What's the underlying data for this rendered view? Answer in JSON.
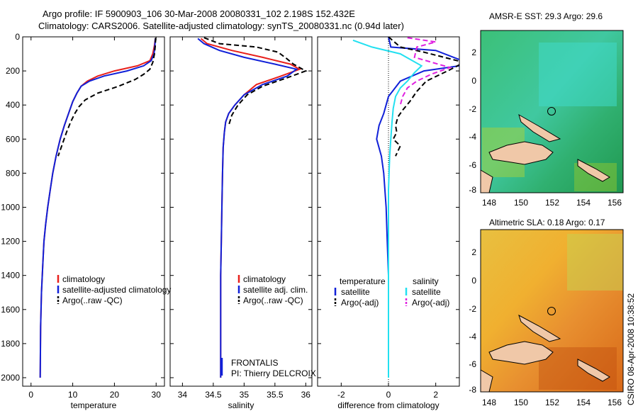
{
  "title_line1": "Argo profile: IF 5900903_106 30-Mar-2008 20080331_102 2.198S 152.432E",
  "title_line2": "Climatology: CARS2006. Satellite-adjusted climatology: synTS_20080331.nc (0.94d later)",
  "side_label": "CSIRO 08-Apr-2008 10:38:52",
  "colors": {
    "climatology": "#e8201c",
    "satellite": "#1020d8",
    "argo": "#000000",
    "cyan": "#22e0f0",
    "magenta": "#e020e0"
  },
  "chart_data": [
    {
      "type": "line",
      "id": "temperature",
      "xlabel": "temperature",
      "ylabel": "",
      "xlim": [
        -2,
        32
      ],
      "ylim": [
        2050,
        0
      ],
      "y_inverted": true,
      "xticks": [
        0,
        10,
        20,
        30
      ],
      "yticks": [
        0,
        200,
        400,
        600,
        800,
        1000,
        1200,
        1400,
        1600,
        1800,
        2000
      ],
      "legend": {
        "position": "bottom-right",
        "entries": [
          "climatology",
          "satellite-adjusted climatology",
          "Argo(..raw -QC)"
        ]
      },
      "series": [
        {
          "name": "climatology",
          "color": "#e8201c",
          "dash": "solid",
          "x": [
            29.8,
            29.6,
            29.2,
            28.5,
            25.5,
            20,
            16,
            13.5,
            12,
            11,
            10,
            9,
            8,
            7,
            6,
            5.2,
            4.6,
            4,
            3.5,
            3.1,
            2.8,
            2.5,
            2.3,
            2.2
          ],
          "y": [
            10,
            50,
            100,
            140,
            170,
            200,
            230,
            260,
            290,
            330,
            380,
            450,
            520,
            600,
            700,
            800,
            900,
            1000,
            1100,
            1200,
            1350,
            1500,
            1700,
            2000
          ]
        },
        {
          "name": "satellite-adjusted climatology",
          "color": "#1020d8",
          "dash": "solid",
          "x": [
            29.8,
            29.7,
            29.5,
            28.8,
            27,
            23,
            17.5,
            14,
            12,
            11,
            10,
            9,
            8,
            7,
            6,
            5.2,
            4.6,
            4,
            3.5,
            3.1,
            2.8,
            2.5,
            2.3,
            2.2
          ],
          "y": [
            10,
            50,
            100,
            140,
            170,
            200,
            230,
            260,
            290,
            330,
            380,
            450,
            520,
            600,
            700,
            800,
            900,
            1000,
            1100,
            1200,
            1350,
            1500,
            1700,
            2000
          ]
        },
        {
          "name": "Argo(..raw -QC)",
          "color": "#000000",
          "dash": "dashed",
          "x": [
            29.9,
            29.8,
            29.6,
            29.2,
            28.5,
            27,
            25,
            21,
            16,
            13,
            11.5,
            10.5,
            9.5,
            8.5,
            7.5,
            6.5
          ],
          "y": [
            5,
            50,
            100,
            150,
            190,
            220,
            250,
            290,
            330,
            370,
            410,
            450,
            500,
            560,
            630,
            700
          ]
        }
      ]
    },
    {
      "type": "line",
      "id": "salinity",
      "xlabel": "salinity",
      "ylabel": "",
      "xlim": [
        33.8,
        36.1
      ],
      "ylim": [
        2050,
        0
      ],
      "y_inverted": true,
      "xticks": [
        34,
        34.5,
        35,
        35.5,
        36
      ],
      "legend": {
        "position": "bottom-right",
        "entries": [
          "climatology",
          "satellite adj. clim.",
          "Argo(..raw -QC)"
        ]
      },
      "annotation": [
        "FRONTALIS",
        "PI: Thierry DELCROIX"
      ],
      "series": [
        {
          "name": "climatology",
          "color": "#e8201c",
          "dash": "solid",
          "x": [
            34.3,
            34.4,
            34.8,
            35.3,
            35.75,
            35.9,
            35.6,
            35.2,
            35.0,
            34.85,
            34.75,
            34.7,
            34.68,
            34.66,
            34.65,
            34.64,
            34.63,
            34.62,
            34.62,
            34.62
          ],
          "y": [
            10,
            40,
            80,
            120,
            160,
            190,
            230,
            280,
            340,
            400,
            450,
            500,
            560,
            650,
            800,
            1000,
            1200,
            1400,
            1700,
            2000
          ]
        },
        {
          "name": "satellite adj. clim.",
          "color": "#1020d8",
          "dash": "solid",
          "x": [
            34.25,
            34.35,
            34.6,
            35.0,
            35.5,
            35.85,
            35.7,
            35.3,
            35.0,
            34.85,
            34.75,
            34.7,
            34.68,
            34.66,
            34.65,
            34.64,
            34.63,
            34.62,
            34.62,
            34.62
          ],
          "y": [
            10,
            40,
            80,
            120,
            160,
            190,
            230,
            280,
            340,
            400,
            450,
            500,
            560,
            650,
            800,
            1000,
            1200,
            1400,
            1700,
            2000
          ]
        },
        {
          "name": "Argo(..raw -QC)",
          "color": "#000000",
          "dash": "dashed",
          "x": [
            34.35,
            34.6,
            35.2,
            35.55,
            35.7,
            35.8,
            36.0,
            35.7,
            35.3,
            35.05,
            34.9,
            34.8,
            34.75
          ],
          "y": [
            5,
            40,
            60,
            90,
            130,
            160,
            200,
            240,
            290,
            340,
            400,
            460,
            520
          ]
        }
      ]
    },
    {
      "type": "line",
      "id": "difference",
      "xlabel": "difference from climatology",
      "ylabel": "",
      "xlim": [
        -3,
        3
      ],
      "ylim": [
        2050,
        0
      ],
      "y_inverted": true,
      "xticks": [
        -2,
        0,
        2
      ],
      "legend": {
        "position": "bottom-center",
        "columns": [
          {
            "heading": "temperature",
            "entries": [
              "satellite",
              "Argo(-adj)"
            ]
          },
          {
            "heading": "salinity",
            "entries": [
              "satellite",
              "Argo(-adj)"
            ]
          }
        ]
      },
      "series": [
        {
          "name": "temperature satellite",
          "color": "#1020d8",
          "dash": "solid",
          "x": [
            0,
            0.1,
            2,
            3.5,
            1.5,
            0.5,
            0,
            -0.2,
            -0.4,
            -0.5,
            -0.3,
            -0.2,
            -0.15,
            -0.1,
            -0.05,
            0,
            0,
            0
          ],
          "y": [
            0,
            60,
            80,
            160,
            200,
            260,
            350,
            450,
            520,
            600,
            700,
            800,
            900,
            1000,
            1200,
            1400,
            1700,
            2000
          ]
        },
        {
          "name": "temperature Argo(-adj)",
          "color": "#000000",
          "dash": "dashed",
          "x": [
            0,
            0.5,
            1.5,
            3.2,
            2.5,
            1.6,
            1.2,
            0.9,
            0.6,
            0.4,
            0.3,
            0.35,
            0.2,
            0.5,
            0.3
          ],
          "y": [
            0,
            60,
            90,
            150,
            200,
            260,
            320,
            380,
            430,
            470,
            520,
            560,
            600,
            640,
            700
          ]
        },
        {
          "name": "salinity satellite",
          "color": "#22e0f0",
          "dash": "solid",
          "x": [
            -1.5,
            -0.7,
            0.5,
            1.4,
            1.1,
            0.8,
            0.5,
            0.3,
            0.2,
            0.15,
            0.1,
            0.05,
            0,
            0,
            0,
            0
          ],
          "y": [
            20,
            60,
            100,
            170,
            210,
            260,
            300,
            350,
            420,
            500,
            600,
            700,
            900,
            1200,
            1600,
            2000
          ]
        },
        {
          "name": "salinity Argo(-adj)",
          "color": "#e020e0",
          "dash": "dashed",
          "x": [
            0.8,
            2,
            1.2,
            1.1,
            2.6,
            1.8,
            1.2,
            0.8,
            0.6,
            0.5
          ],
          "y": [
            5,
            30,
            60,
            120,
            180,
            220,
            260,
            300,
            350,
            400
          ]
        }
      ]
    }
  ],
  "maps": [
    {
      "title": "AMSR-E SST: 29.3 Argo: 29.6",
      "xticks": [
        "148",
        "150",
        "152",
        "154",
        "156"
      ],
      "yticks": [
        "2",
        "0",
        "-2",
        "-4",
        "-6",
        "-8"
      ]
    },
    {
      "title": "Altimetric SLA: 0.18 Argo: 0.17",
      "xticks": [
        "148",
        "150",
        "152",
        "154",
        "156"
      ],
      "yticks": [
        "2",
        "0",
        "-2",
        "-4",
        "-6",
        "-8"
      ]
    }
  ]
}
